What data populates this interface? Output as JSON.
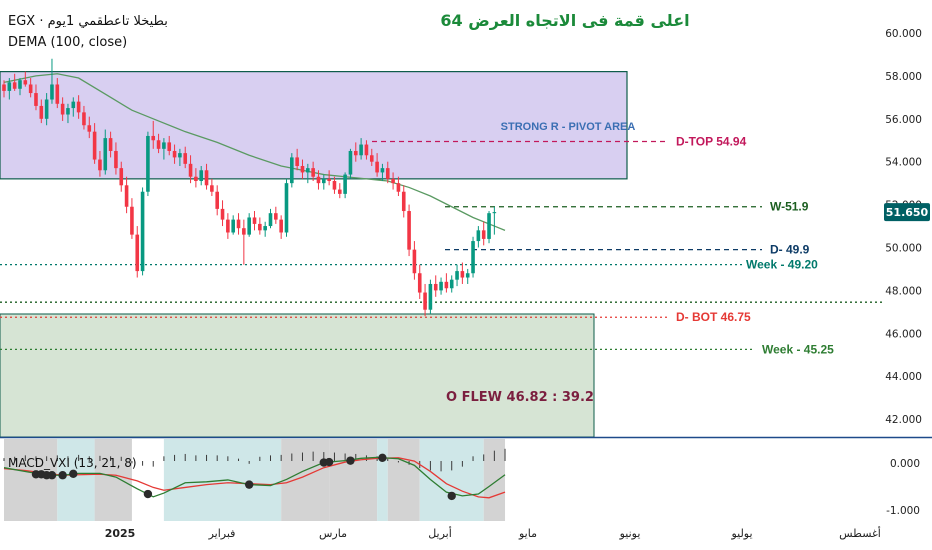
{
  "header": {
    "symbol_line": "EGX · بطيخلا تاعطقمي 1يوم",
    "indicator": "DEMA (100, close)",
    "title": "اعلى قمة فى الاتجاه العرض  64"
  },
  "chart_data": {
    "type": "candlestick",
    "ylim": [
      41,
      61
    ],
    "y_ticks": [
      "60.000",
      "58.000",
      "56.000",
      "54.000",
      "52.000",
      "50.000",
      "48.000",
      "46.000",
      "44.000",
      "42.000"
    ],
    "last_price": "51.650",
    "x_labels": [
      "2025",
      "فبراير",
      "مارس",
      "أبريل",
      "مايو",
      "يونيو",
      "يوليو",
      "أغسطس"
    ],
    "zones": [
      {
        "name": "resistance",
        "low": 53.2,
        "high": 58.2,
        "label": "STRONG R - PIVOT AREA",
        "color": "#d8cff1"
      },
      {
        "name": "support",
        "low": 41.0,
        "high": 46.9,
        "label": "O  FLEW    46.82  :  39.2",
        "color": "#d6e4d4"
      }
    ],
    "levels": [
      {
        "label": "D-TOP 54.94",
        "value": 54.94,
        "color": "#c2185b",
        "style": "dashed"
      },
      {
        "label": "W-51.9",
        "value": 51.9,
        "color": "#1b5e20",
        "style": "dashed"
      },
      {
        "label": "D- 49.9",
        "value": 49.9,
        "color": "#0d3b66",
        "style": "dashed"
      },
      {
        "label": "Week - 49.20",
        "value": 49.2,
        "color": "#00796b",
        "style": "dotted"
      },
      {
        "label": "D- BOT 46.75",
        "value": 46.75,
        "color": "#e53935",
        "style": "dotted"
      },
      {
        "label": "Week - 45.25",
        "value": 45.25,
        "color": "#2e7d32",
        "style": "dotted"
      },
      {
        "label": "",
        "value": 47.45,
        "color": "#1b5e20",
        "style": "dotted"
      }
    ],
    "candles": [
      [
        57.6,
        57.8,
        57.0,
        57.3
      ],
      [
        57.3,
        57.9,
        56.9,
        57.7
      ],
      [
        57.7,
        58.1,
        57.3,
        57.4
      ],
      [
        57.4,
        57.9,
        57.1,
        57.8
      ],
      [
        57.8,
        58.2,
        57.5,
        57.6
      ],
      [
        57.6,
        57.9,
        57.0,
        57.2
      ],
      [
        57.2,
        57.6,
        56.4,
        56.6
      ],
      [
        56.6,
        56.9,
        55.8,
        56.0
      ],
      [
        56.0,
        57.2,
        55.7,
        56.9
      ],
      [
        56.9,
        58.8,
        56.7,
        57.6
      ],
      [
        57.6,
        57.9,
        56.5,
        56.7
      ],
      [
        56.7,
        57.0,
        55.9,
        56.2
      ],
      [
        56.2,
        56.7,
        55.8,
        56.5
      ],
      [
        56.5,
        57.0,
        56.1,
        56.8
      ],
      [
        56.8,
        57.1,
        56.0,
        56.3
      ],
      [
        56.3,
        56.6,
        55.5,
        55.7
      ],
      [
        55.7,
        56.1,
        55.1,
        55.4
      ],
      [
        55.4,
        55.8,
        53.9,
        54.1
      ],
      [
        54.1,
        54.5,
        53.3,
        53.6
      ],
      [
        53.6,
        55.5,
        53.4,
        55.1
      ],
      [
        55.1,
        55.4,
        54.2,
        54.5
      ],
      [
        54.5,
        54.9,
        53.4,
        53.7
      ],
      [
        53.7,
        54.0,
        52.6,
        52.9
      ],
      [
        52.9,
        53.3,
        51.6,
        51.9
      ],
      [
        51.9,
        52.3,
        50.4,
        50.6
      ],
      [
        50.6,
        51.0,
        48.6,
        48.9
      ],
      [
        48.9,
        52.8,
        48.7,
        52.6
      ],
      [
        52.6,
        55.4,
        52.4,
        55.2
      ],
      [
        55.2,
        55.9,
        54.6,
        55.0
      ],
      [
        55.0,
        55.3,
        54.4,
        54.6
      ],
      [
        54.6,
        55.1,
        54.1,
        54.9
      ],
      [
        54.9,
        55.2,
        54.3,
        54.5
      ],
      [
        54.5,
        54.8,
        53.9,
        54.2
      ],
      [
        54.2,
        54.6,
        53.8,
        54.4
      ],
      [
        54.4,
        54.7,
        53.7,
        53.9
      ],
      [
        53.9,
        54.3,
        53.0,
        53.3
      ],
      [
        53.3,
        53.7,
        52.8,
        53.1
      ],
      [
        53.1,
        53.8,
        52.9,
        53.6
      ],
      [
        53.6,
        53.9,
        52.7,
        52.9
      ],
      [
        52.9,
        53.2,
        52.4,
        52.6
      ],
      [
        52.6,
        52.9,
        51.5,
        51.8
      ],
      [
        51.8,
        52.2,
        51.0,
        51.3
      ],
      [
        51.3,
        51.6,
        50.4,
        50.7
      ],
      [
        50.7,
        51.5,
        50.6,
        51.3
      ],
      [
        51.3,
        51.6,
        50.6,
        50.9
      ],
      [
        50.9,
        51.3,
        49.2,
        50.6
      ],
      [
        50.6,
        51.6,
        50.5,
        51.4
      ],
      [
        51.4,
        51.7,
        50.8,
        51.1
      ],
      [
        51.1,
        51.4,
        50.6,
        50.8
      ],
      [
        50.8,
        51.2,
        50.5,
        51.0
      ],
      [
        51.0,
        51.8,
        50.9,
        51.6
      ],
      [
        51.6,
        51.9,
        51.1,
        51.3
      ],
      [
        51.3,
        51.5,
        50.4,
        50.7
      ],
      [
        50.7,
        53.2,
        50.5,
        53.0
      ],
      [
        53.0,
        54.4,
        52.8,
        54.2
      ],
      [
        54.2,
        54.6,
        53.6,
        53.8
      ],
      [
        53.8,
        54.1,
        53.2,
        53.5
      ],
      [
        53.5,
        53.9,
        53.0,
        53.7
      ],
      [
        53.7,
        54.0,
        53.1,
        53.3
      ],
      [
        53.3,
        53.6,
        52.7,
        53.0
      ],
      [
        53.0,
        53.4,
        52.7,
        53.2
      ],
      [
        53.2,
        53.6,
        52.9,
        53.1
      ],
      [
        53.1,
        53.3,
        52.5,
        52.7
      ],
      [
        52.7,
        53.0,
        52.3,
        52.5
      ],
      [
        52.5,
        53.5,
        52.3,
        53.4
      ],
      [
        53.4,
        54.6,
        53.2,
        54.5
      ],
      [
        54.5,
        54.9,
        54.0,
        54.3
      ],
      [
        54.3,
        55.1,
        54.1,
        54.8
      ],
      [
        54.8,
        55.0,
        54.1,
        54.3
      ],
      [
        54.3,
        54.6,
        53.8,
        54.0
      ],
      [
        54.0,
        54.4,
        53.3,
        53.5
      ],
      [
        53.5,
        53.9,
        53.1,
        53.7
      ],
      [
        53.7,
        54.0,
        53.0,
        53.2
      ],
      [
        53.2,
        53.5,
        52.7,
        53.0
      ],
      [
        53.0,
        53.3,
        52.4,
        52.6
      ],
      [
        52.6,
        52.9,
        51.4,
        51.7
      ],
      [
        51.7,
        52.0,
        49.6,
        49.9
      ],
      [
        49.9,
        50.3,
        48.5,
        48.8
      ],
      [
        48.8,
        49.2,
        47.6,
        47.9
      ],
      [
        47.9,
        48.3,
        46.8,
        47.1
      ],
      [
        47.1,
        48.5,
        46.9,
        48.3
      ],
      [
        48.3,
        48.7,
        47.7,
        48.0
      ],
      [
        48.0,
        48.6,
        47.8,
        48.4
      ],
      [
        48.4,
        48.8,
        47.9,
        48.1
      ],
      [
        48.1,
        48.7,
        47.9,
        48.5
      ],
      [
        48.5,
        49.2,
        48.2,
        48.9
      ],
      [
        48.9,
        49.3,
        48.3,
        48.6
      ],
      [
        48.6,
        49.0,
        48.3,
        48.8
      ],
      [
        48.8,
        50.5,
        48.6,
        50.3
      ],
      [
        50.3,
        51.0,
        50.0,
        50.8
      ],
      [
        50.8,
        51.2,
        50.1,
        50.4
      ],
      [
        50.4,
        51.7,
        50.2,
        51.6
      ],
      [
        51.6,
        51.9,
        50.6,
        51.65
      ]
    ],
    "dema": [
      [
        0,
        57.7
      ],
      [
        6,
        58.0
      ],
      [
        10,
        58.1
      ],
      [
        14,
        57.9
      ],
      [
        20,
        57.0
      ],
      [
        24,
        56.4
      ],
      [
        28,
        56.0
      ],
      [
        34,
        55.4
      ],
      [
        40,
        54.9
      ],
      [
        46,
        54.3
      ],
      [
        52,
        53.8
      ],
      [
        56,
        53.6
      ],
      [
        60,
        53.4
      ],
      [
        64,
        53.3
      ],
      [
        68,
        53.2
      ],
      [
        72,
        53.1
      ],
      [
        76,
        52.8
      ],
      [
        80,
        52.4
      ],
      [
        84,
        51.9
      ],
      [
        88,
        51.4
      ],
      [
        92,
        51.0
      ],
      [
        94,
        50.8
      ]
    ]
  },
  "macd": {
    "label": "MACD_VXI (13, 21, 8)",
    "ylim": [
      -1.05,
      0.45
    ],
    "y_ticks": [
      "0.000",
      "-1.000"
    ],
    "shade_bands": [
      [
        0,
        10,
        "#d3d3d3"
      ],
      [
        10,
        17,
        "#cfe7e8"
      ],
      [
        17,
        24,
        "#d3d3d3"
      ],
      [
        30,
        45,
        "#cfe7e8"
      ],
      [
        44,
        52,
        "#cfe7e8"
      ],
      [
        52,
        61,
        "#d3d3d3"
      ],
      [
        61,
        70,
        "#d3d3d3"
      ],
      [
        70,
        72,
        "#cfe7e8"
      ],
      [
        72,
        78,
        "#d3d3d3"
      ],
      [
        78,
        90,
        "#cfe7e8"
      ],
      [
        90,
        94,
        "#d3d3d3"
      ]
    ],
    "macd_line": [
      [
        0,
        -0.1
      ],
      [
        4,
        -0.18
      ],
      [
        8,
        -0.26
      ],
      [
        11,
        -0.26
      ],
      [
        14,
        -0.22
      ],
      [
        18,
        -0.22
      ],
      [
        21,
        -0.3
      ],
      [
        25,
        -0.55
      ],
      [
        28,
        -0.72
      ],
      [
        30,
        -0.64
      ],
      [
        34,
        -0.42
      ],
      [
        38,
        -0.4
      ],
      [
        42,
        -0.36
      ],
      [
        46,
        -0.46
      ],
      [
        50,
        -0.48
      ],
      [
        53,
        -0.35
      ],
      [
        56,
        -0.18
      ],
      [
        60,
        0.01
      ],
      [
        64,
        0.05
      ],
      [
        67,
        0.1
      ],
      [
        70,
        0.12
      ],
      [
        74,
        0.09
      ],
      [
        77,
        -0.05
      ],
      [
        80,
        -0.35
      ],
      [
        83,
        -0.62
      ],
      [
        86,
        -0.7
      ],
      [
        89,
        -0.66
      ],
      [
        91,
        -0.5
      ],
      [
        94,
        -0.25
      ]
    ],
    "signal_line": [
      [
        0,
        -0.12
      ],
      [
        4,
        -0.16
      ],
      [
        8,
        -0.22
      ],
      [
        11,
        -0.26
      ],
      [
        14,
        -0.25
      ],
      [
        18,
        -0.24
      ],
      [
        21,
        -0.26
      ],
      [
        25,
        -0.38
      ],
      [
        28,
        -0.52
      ],
      [
        30,
        -0.58
      ],
      [
        34,
        -0.52
      ],
      [
        38,
        -0.46
      ],
      [
        42,
        -0.42
      ],
      [
        46,
        -0.44
      ],
      [
        50,
        -0.46
      ],
      [
        53,
        -0.42
      ],
      [
        56,
        -0.3
      ],
      [
        60,
        -0.1
      ],
      [
        64,
        0.02
      ],
      [
        67,
        0.07
      ],
      [
        70,
        0.1
      ],
      [
        74,
        0.11
      ],
      [
        77,
        0.04
      ],
      [
        80,
        -0.18
      ],
      [
        83,
        -0.44
      ],
      [
        86,
        -0.6
      ],
      [
        89,
        -0.72
      ],
      [
        91,
        -0.74
      ],
      [
        94,
        -0.62
      ]
    ],
    "crosses": [
      [
        6,
        -0.24
      ],
      [
        7,
        -0.24
      ],
      [
        8,
        -0.26
      ],
      [
        9,
        -0.26
      ],
      [
        11,
        -0.26
      ],
      [
        13,
        -0.23
      ],
      [
        27,
        -0.66
      ],
      [
        46,
        -0.46
      ],
      [
        60,
        0.01
      ],
      [
        61,
        0.02
      ],
      [
        65,
        0.05
      ],
      [
        71,
        0.11
      ],
      [
        84,
        -0.7
      ]
    ],
    "histogram": [
      [
        0,
        0.06
      ],
      [
        2,
        0.09
      ],
      [
        4,
        0.12
      ],
      [
        6,
        0.1
      ],
      [
        8,
        0.1
      ],
      [
        10,
        0.12
      ],
      [
        12,
        0.1
      ],
      [
        14,
        0.13
      ],
      [
        16,
        0.1
      ],
      [
        18,
        0.11
      ],
      [
        20,
        0.1
      ],
      [
        22,
        0.09
      ],
      [
        24,
        -0.05
      ],
      [
        26,
        -0.1
      ],
      [
        28,
        -0.12
      ],
      [
        30,
        0.1
      ],
      [
        32,
        0.13
      ],
      [
        34,
        0.15
      ],
      [
        36,
        0.12
      ],
      [
        38,
        0.13
      ],
      [
        40,
        0.12
      ],
      [
        42,
        0.1
      ],
      [
        44,
        0.05
      ],
      [
        46,
        -0.06
      ],
      [
        48,
        0.09
      ],
      [
        50,
        0.12
      ],
      [
        52,
        0.13
      ],
      [
        54,
        0.16
      ],
      [
        56,
        0.18
      ],
      [
        58,
        0.2
      ],
      [
        60,
        0.19
      ],
      [
        62,
        0.18
      ],
      [
        64,
        0.16
      ],
      [
        66,
        0.15
      ],
      [
        68,
        0.12
      ],
      [
        70,
        0.1
      ],
      [
        72,
        0.05
      ],
      [
        74,
        -0.03
      ],
      [
        76,
        -0.08
      ],
      [
        78,
        -0.15
      ],
      [
        80,
        -0.2
      ],
      [
        82,
        -0.22
      ],
      [
        84,
        -0.2
      ],
      [
        86,
        -0.12
      ],
      [
        88,
        0.1
      ],
      [
        90,
        0.14
      ],
      [
        92,
        0.22
      ],
      [
        94,
        0.26
      ]
    ]
  },
  "colors": {
    "up": "#089981",
    "down": "#f23645",
    "dema": "#5a9a62",
    "macd": "#2e7d32",
    "signal": "#e53935",
    "price_tag": "#006064",
    "title": "#1b8a3a",
    "pivot_text": "#3b6fb3",
    "flew_text": "#7b1f3f"
  }
}
